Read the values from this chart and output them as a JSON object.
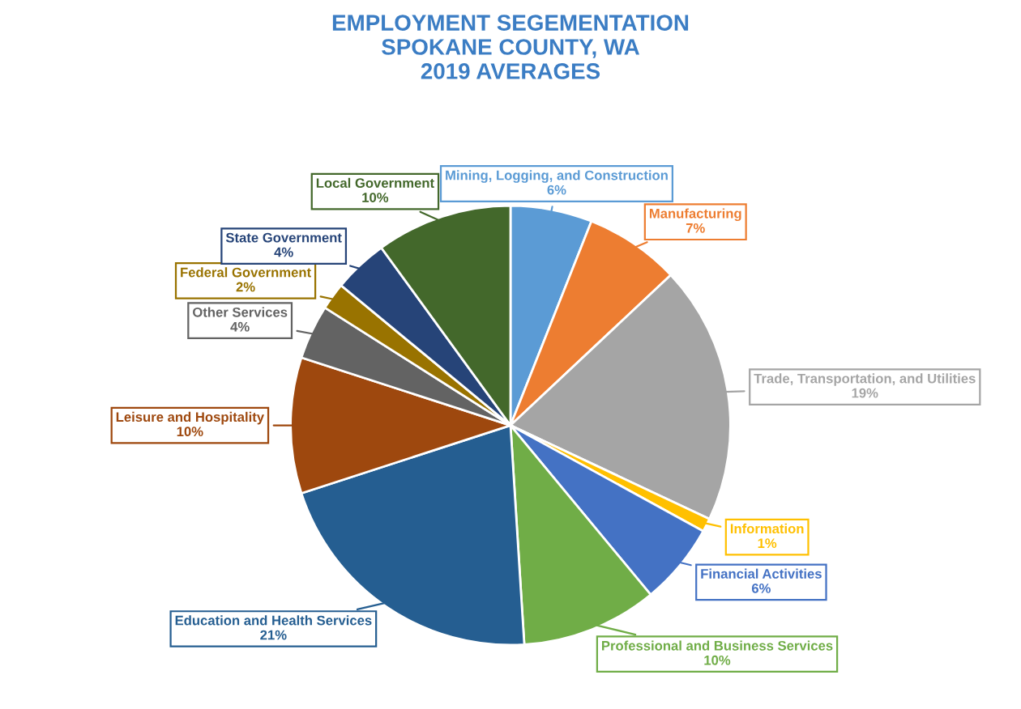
{
  "chart_data": {
    "type": "pie",
    "title": "EMPLOYMENT SEGEMENTATION\nSPOKANE COUNTY, WA\n2019 AVERAGES",
    "categories": [
      "Mining, Logging, and Construction",
      "Manufacturing",
      "Trade, Transportation, and Utilities",
      "Information",
      "Financial Activities",
      "Professional and Business Services",
      "Education and Health Services",
      "Leisure and Hospitality",
      "Other Services",
      "Federal Government",
      "State Government",
      "Local Government"
    ],
    "values": [
      6,
      7,
      19,
      1,
      6,
      10,
      21,
      10,
      4,
      2,
      4,
      10
    ],
    "value_labels": [
      "6%",
      "7%",
      "19%",
      "1%",
      "6%",
      "10%",
      "21%",
      "10%",
      "4%",
      "2%",
      "4%",
      "10%"
    ],
    "colors": [
      "#5b9bd5",
      "#ed7d31",
      "#a5a5a5",
      "#ffc000",
      "#4472c4",
      "#70ad47",
      "#255e91",
      "#9e480e",
      "#636363",
      "#997300",
      "#264478",
      "#43682b"
    ],
    "legend": false
  }
}
